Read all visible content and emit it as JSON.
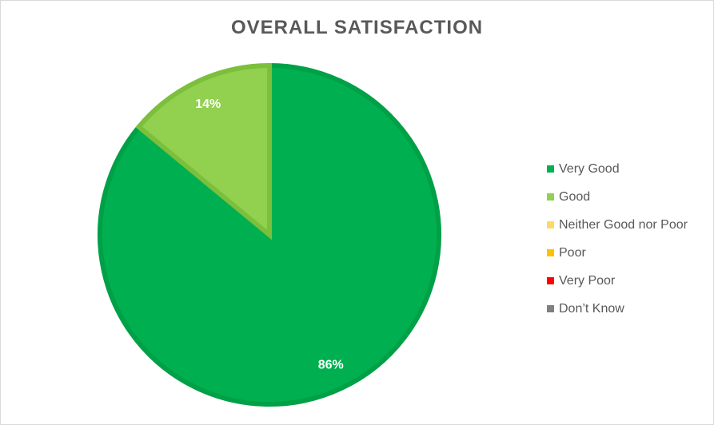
{
  "chart_data": {
    "type": "pie",
    "title": "OVERALL SATISFACTION",
    "categories": [
      "Very Good",
      "Good",
      "Neither Good nor Poor",
      "Poor",
      "Very Poor",
      "Don’t Know"
    ],
    "values": [
      86,
      14,
      0,
      0,
      0,
      0
    ],
    "data_labels": [
      "86%",
      "14%",
      "",
      "",
      "",
      ""
    ],
    "colors": [
      "#00b050",
      "#92d050",
      "#ffd966",
      "#ffc000",
      "#ff0000",
      "#808080"
    ],
    "border_colors": [
      "#00a047",
      "#7cbf3c",
      "#e6c04d",
      "#e6ad00",
      "#e60000",
      "#6e6e6e"
    ],
    "start_angle_deg": 0,
    "direction": "clockwise",
    "legend_position": "right"
  }
}
